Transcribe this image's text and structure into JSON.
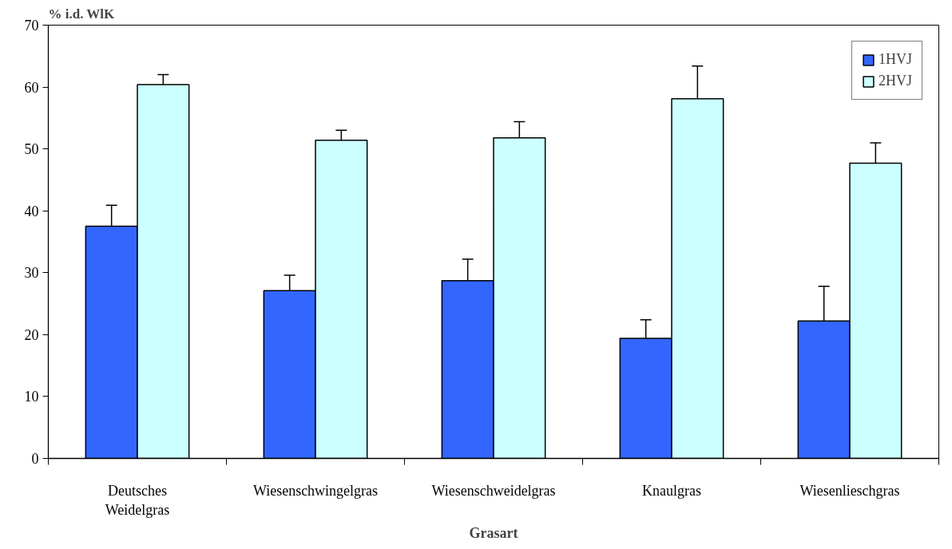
{
  "chart_data": {
    "type": "bar",
    "ylabel": "% i.d. WlK",
    "xlabel": "Grasart",
    "categories": [
      "Deutsches Weidelgras",
      "Wiesenschwingelgras",
      "Wiesenschweidelgras",
      "Knaulgras",
      "Wiesenlieschgras"
    ],
    "series": [
      {
        "name": "1HVJ",
        "color": "#3366ff",
        "values": [
          37.5,
          27.1,
          28.7,
          19.4,
          22.2
        ],
        "errors": [
          3.4,
          2.5,
          3.5,
          3.0,
          5.6
        ]
      },
      {
        "name": "2HVJ",
        "color": "#ccffff",
        "values": [
          60.4,
          51.4,
          51.8,
          58.1,
          47.7
        ],
        "errors": [
          1.6,
          1.6,
          2.6,
          5.3,
          3.3
        ]
      }
    ],
    "ylim": [
      0,
      70
    ],
    "yticks": [
      0,
      10,
      20,
      30,
      40,
      50,
      60,
      70
    ],
    "grid": false,
    "legend": "top right"
  }
}
